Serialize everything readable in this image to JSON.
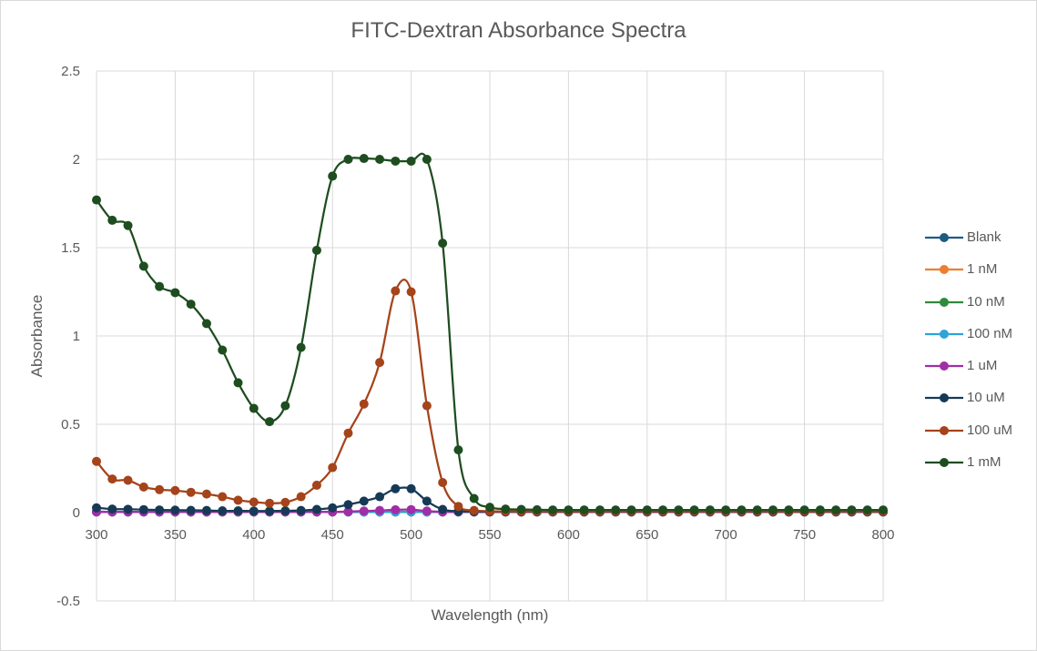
{
  "chart_data": {
    "type": "line",
    "title": "FITC-Dextran Absorbance Spectra",
    "xlabel": "Wavelength (nm)",
    "ylabel": "Absorbance",
    "xlim": [
      300,
      800
    ],
    "ylim": [
      -0.5,
      2.5
    ],
    "xticks": [
      300,
      350,
      400,
      450,
      500,
      550,
      600,
      650,
      700,
      750,
      800
    ],
    "yticks": [
      -0.5,
      0,
      0.5,
      1,
      1.5,
      2,
      2.5
    ],
    "ytick_labels": [
      "-0.5",
      "0",
      "0.5",
      "1",
      "1.5",
      "2",
      "2.5"
    ],
    "grid": true,
    "legend_position": "right",
    "x": [
      300,
      310,
      320,
      330,
      340,
      350,
      360,
      370,
      380,
      390,
      400,
      410,
      420,
      430,
      440,
      450,
      460,
      470,
      480,
      490,
      500,
      510,
      520,
      530,
      540,
      550,
      560,
      570,
      580,
      590,
      600,
      610,
      620,
      630,
      640,
      650,
      660,
      670,
      680,
      690,
      700,
      710,
      720,
      730,
      740,
      750,
      760,
      770,
      780,
      790,
      800
    ],
    "series": [
      {
        "name": "Blank",
        "color": "#1f5b82",
        "values": [
          0.005,
          0.004,
          0.004,
          0.004,
          0.004,
          0.004,
          0.004,
          0.004,
          0.004,
          0.004,
          0.004,
          0.004,
          0.004,
          0.004,
          0.004,
          0.004,
          0.004,
          0.004,
          0.004,
          0.004,
          0.004,
          0.004,
          0.004,
          0.004,
          0.004,
          0.004,
          0.004,
          0.004,
          0.004,
          0.004,
          0.004,
          0.004,
          0.004,
          0.004,
          0.004,
          0.004,
          0.004,
          0.004,
          0.004,
          0.004,
          0.004,
          0.004,
          0.004,
          0.004,
          0.004,
          0.004,
          0.004,
          0.004,
          0.004,
          0.004,
          0.004
        ]
      },
      {
        "name": "1 nM",
        "color": "#ed7d31",
        "values": [
          0.004,
          0.004,
          0.004,
          0.004,
          0.004,
          0.004,
          0.004,
          0.004,
          0.004,
          0.004,
          0.004,
          0.004,
          0.004,
          0.004,
          0.004,
          0.004,
          0.004,
          0.004,
          0.004,
          0.004,
          0.004,
          0.004,
          0.004,
          0.004,
          0.004,
          0.004,
          0.004,
          0.004,
          0.004,
          0.004,
          0.004,
          0.004,
          0.004,
          0.004,
          0.004,
          0.004,
          0.004,
          0.004,
          0.004,
          0.004,
          0.004,
          0.004,
          0.004,
          0.004,
          0.004,
          0.004,
          0.004,
          0.004,
          0.004,
          0.004,
          0.004
        ]
      },
      {
        "name": "10 nM",
        "color": "#2e8b3c",
        "values": [
          0.004,
          0.004,
          0.004,
          0.004,
          0.004,
          0.004,
          0.004,
          0.004,
          0.004,
          0.004,
          0.004,
          0.004,
          0.004,
          0.004,
          0.004,
          0.004,
          0.004,
          0.004,
          0.004,
          0.004,
          0.004,
          0.004,
          0.004,
          0.004,
          0.004,
          0.004,
          0.004,
          0.004,
          0.004,
          0.004,
          0.004,
          0.004,
          0.004,
          0.004,
          0.004,
          0.004,
          0.004,
          0.004,
          0.004,
          0.004,
          0.004,
          0.004,
          0.004,
          0.004,
          0.004,
          0.004,
          0.004,
          0.004,
          0.004,
          0.004,
          0.004
        ]
      },
      {
        "name": "100 nM",
        "color": "#2ea3d8",
        "values": [
          0.004,
          0.004,
          0.004,
          0.004,
          0.004,
          0.004,
          0.004,
          0.004,
          0.004,
          0.004,
          0.004,
          0.004,
          0.004,
          0.004,
          0.004,
          0.004,
          0.004,
          0.004,
          0.004,
          0.004,
          0.004,
          0.004,
          0.004,
          0.004,
          0.004,
          0.004,
          0.004,
          0.004,
          0.004,
          0.004,
          0.004,
          0.004,
          0.004,
          0.004,
          0.004,
          0.004,
          0.004,
          0.004,
          0.004,
          0.004,
          0.004,
          0.004,
          0.004,
          0.004,
          0.004,
          0.004,
          0.004,
          0.004,
          0.004,
          0.004,
          0.004
        ]
      },
      {
        "name": "1 uM",
        "color": "#a12ea6",
        "values": [
          0.004,
          0.004,
          0.004,
          0.004,
          0.004,
          0.004,
          0.004,
          0.004,
          0.004,
          0.004,
          0.004,
          0.004,
          0.004,
          0.004,
          0.004,
          0.004,
          0.006,
          0.009,
          0.012,
          0.016,
          0.017,
          0.009,
          0.004,
          0.004,
          0.004,
          0.004,
          0.004,
          0.004,
          0.004,
          0.004,
          0.004,
          0.004,
          0.004,
          0.004,
          0.004,
          0.004,
          0.004,
          0.004,
          0.004,
          0.004,
          0.004,
          0.004,
          0.004,
          0.004,
          0.004,
          0.004,
          0.004,
          0.004,
          0.004,
          0.004,
          0.004
        ]
      },
      {
        "name": "10 uM",
        "color": "#163a56",
        "values": [
          0.027,
          0.02,
          0.019,
          0.017,
          0.015,
          0.014,
          0.013,
          0.012,
          0.01,
          0.01,
          0.009,
          0.009,
          0.01,
          0.012,
          0.018,
          0.027,
          0.045,
          0.065,
          0.09,
          0.135,
          0.135,
          0.065,
          0.018,
          0.008,
          0.006,
          0.005,
          0.005,
          0.005,
          0.005,
          0.005,
          0.005,
          0.005,
          0.005,
          0.005,
          0.005,
          0.005,
          0.005,
          0.005,
          0.005,
          0.005,
          0.005,
          0.005,
          0.005,
          0.005,
          0.005,
          0.005,
          0.005,
          0.005,
          0.005,
          0.005,
          0.005
        ]
      },
      {
        "name": "100 uM",
        "color": "#a5431a",
        "values": [
          0.29,
          0.19,
          0.183,
          0.145,
          0.13,
          0.125,
          0.115,
          0.105,
          0.09,
          0.07,
          0.06,
          0.053,
          0.058,
          0.09,
          0.155,
          0.255,
          0.45,
          0.615,
          0.85,
          1.255,
          1.25,
          0.605,
          0.17,
          0.035,
          0.012,
          0.008,
          0.007,
          0.007,
          0.007,
          0.007,
          0.007,
          0.007,
          0.007,
          0.007,
          0.007,
          0.007,
          0.007,
          0.007,
          0.007,
          0.007,
          0.007,
          0.007,
          0.007,
          0.007,
          0.007,
          0.007,
          0.007,
          0.007,
          0.007,
          0.007,
          0.007
        ]
      },
      {
        "name": "1 mM",
        "color": "#1e4d20",
        "values": [
          1.77,
          1.655,
          1.625,
          1.395,
          1.28,
          1.245,
          1.18,
          1.07,
          0.92,
          0.735,
          0.59,
          0.515,
          0.605,
          0.935,
          1.485,
          1.905,
          2.0,
          2.005,
          2.0,
          1.99,
          1.99,
          2.0,
          1.525,
          0.355,
          0.08,
          0.03,
          0.02,
          0.018,
          0.016,
          0.015,
          0.015,
          0.015,
          0.015,
          0.015,
          0.015,
          0.015,
          0.015,
          0.015,
          0.015,
          0.015,
          0.015,
          0.015,
          0.015,
          0.015,
          0.015,
          0.015,
          0.015,
          0.015,
          0.015,
          0.015,
          0.015
        ]
      }
    ]
  }
}
